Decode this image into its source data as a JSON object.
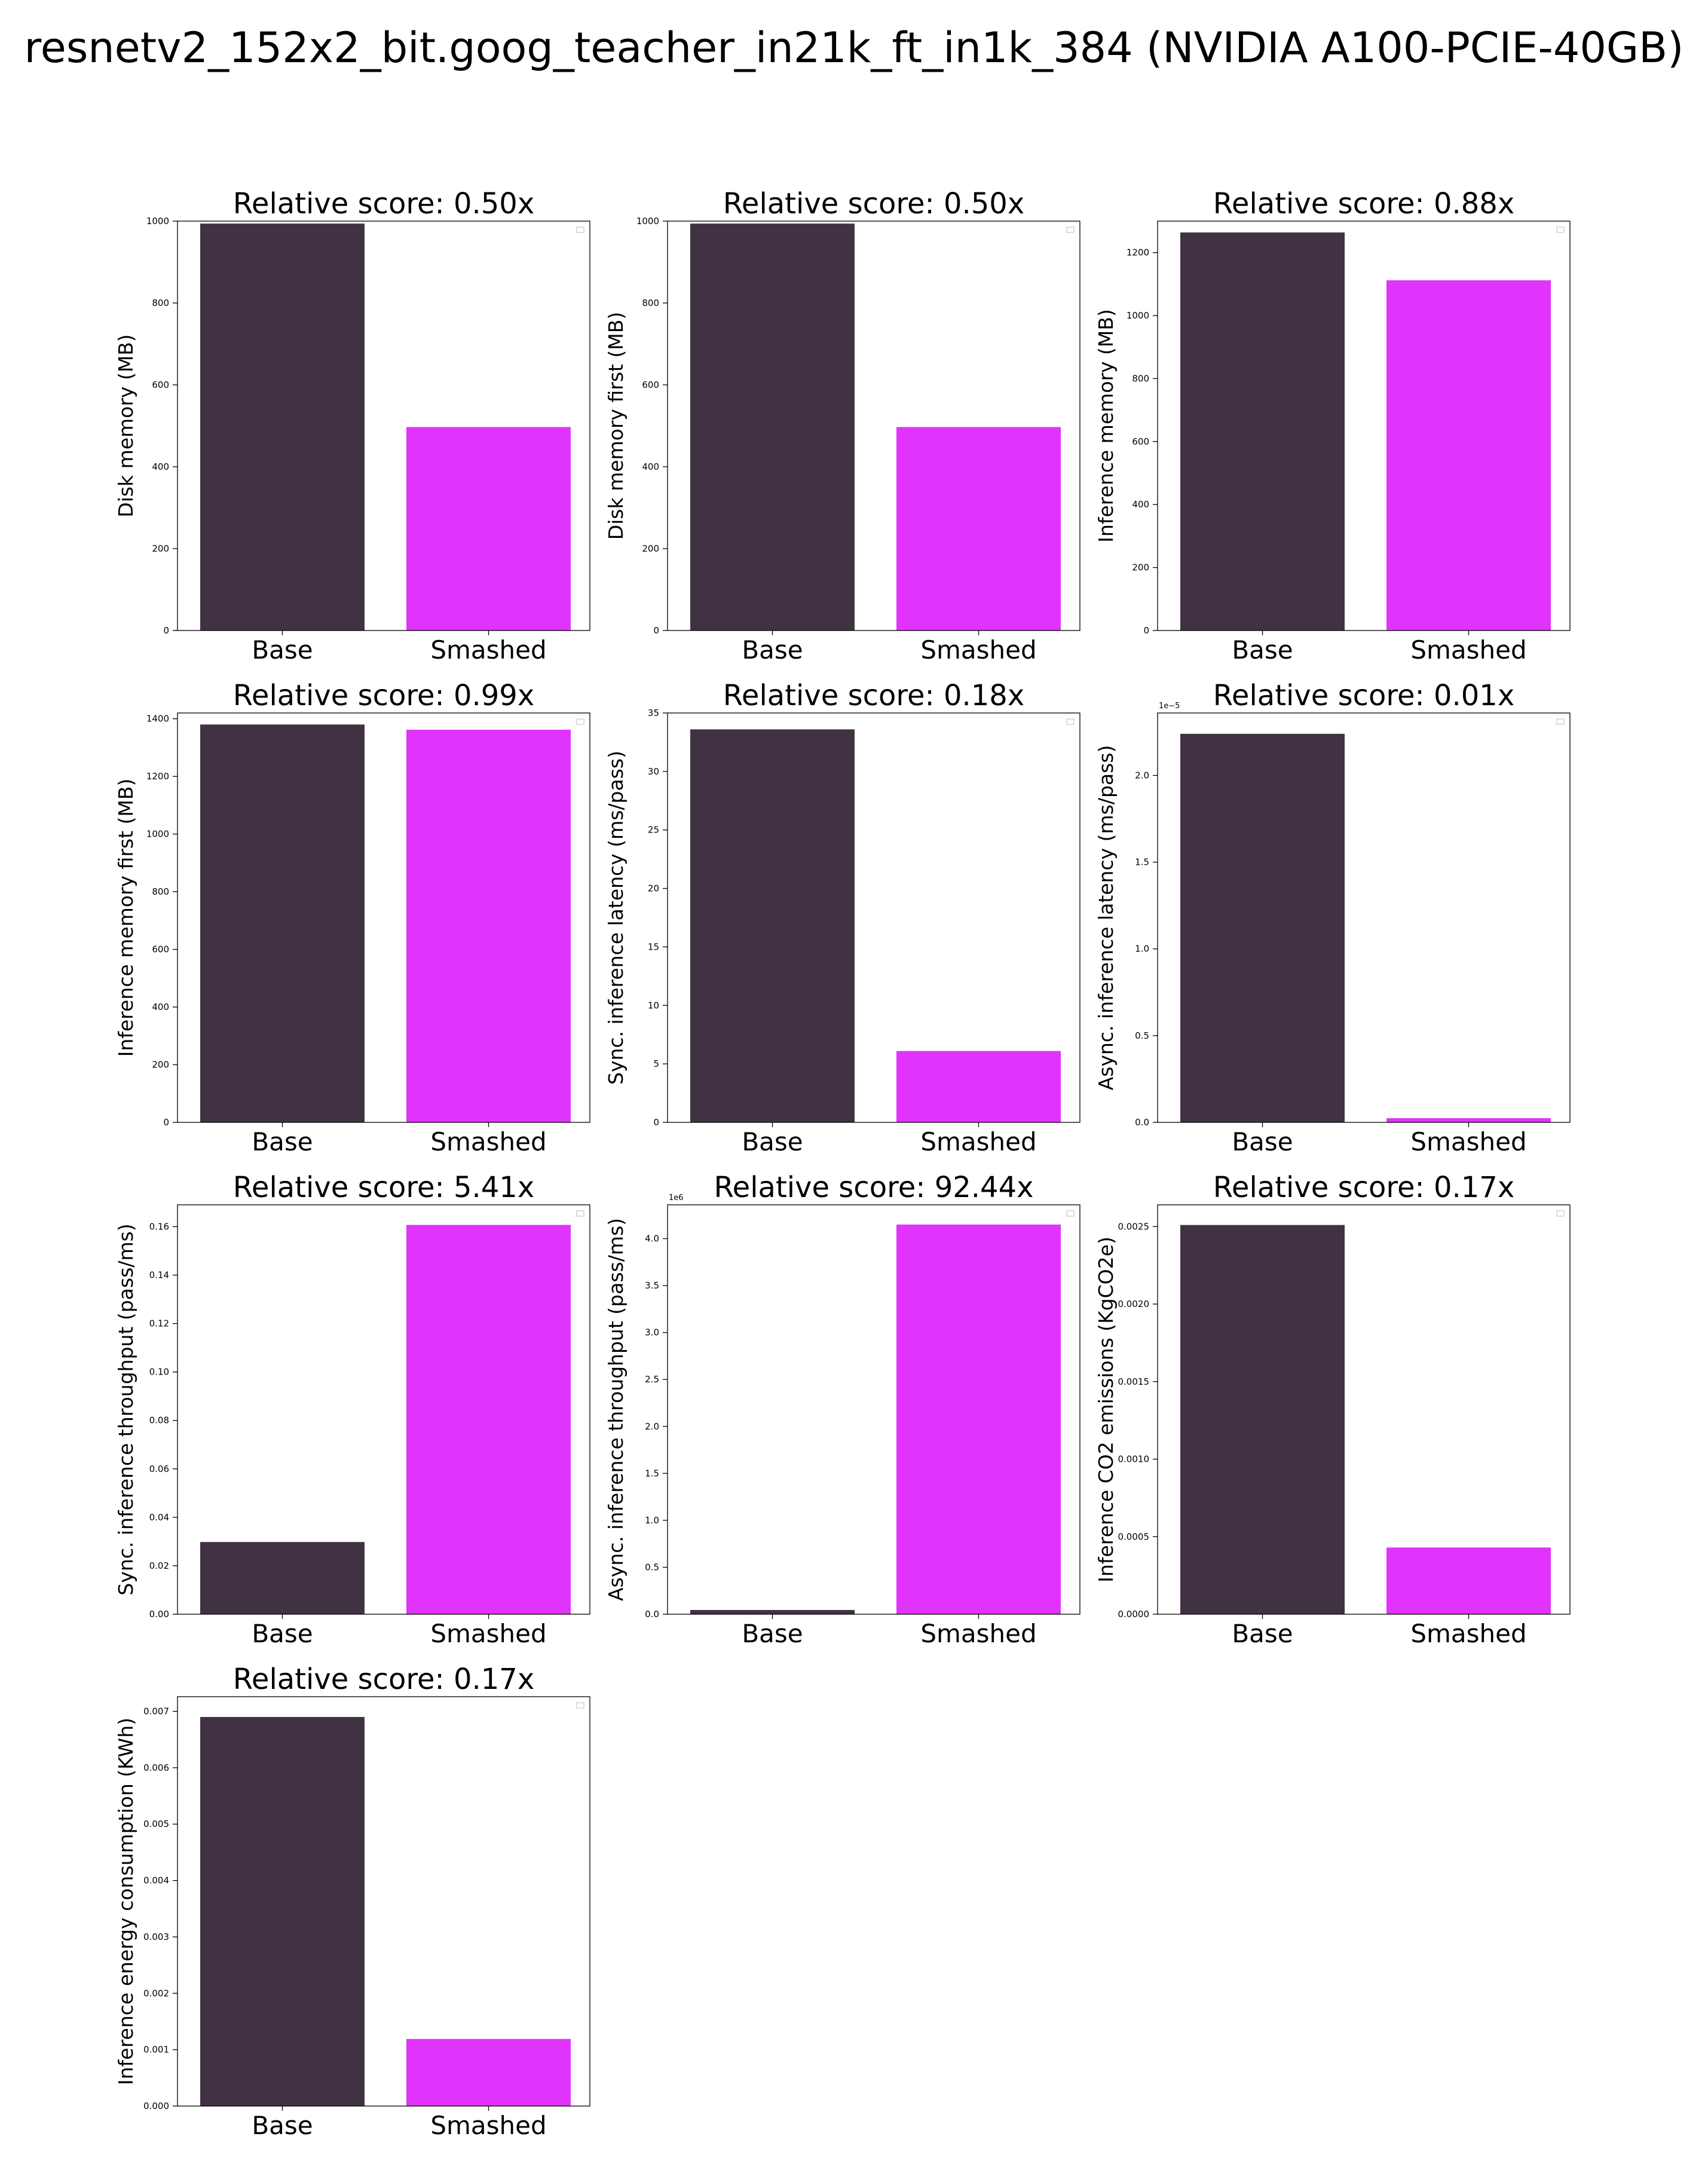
{
  "title": "resnetv2_152x2_bit.goog_teacher_in21k_ft_in1k_384 (NVIDIA A100-PCIE-40GB)",
  "colors": {
    "base": "#413243",
    "smashed": "#e033fb"
  },
  "chart_data": [
    {
      "type": "bar",
      "title": "Relative score: 0.50x",
      "ylabel": "Disk memory (MB)",
      "categories": [
        "Base",
        "Smashed"
      ],
      "values": [
        994,
        497
      ],
      "ylim": [
        0,
        1000
      ],
      "yticks": [
        0,
        200,
        400,
        600,
        800,
        1000
      ],
      "yticklabels": [
        "0",
        "200",
        "400",
        "600",
        "800",
        "1000"
      ],
      "offset_text": ""
    },
    {
      "type": "bar",
      "title": "Relative score: 0.50x",
      "ylabel": "Disk memory first (MB)",
      "categories": [
        "Base",
        "Smashed"
      ],
      "values": [
        994,
        497
      ],
      "ylim": [
        0,
        1000
      ],
      "yticks": [
        0,
        200,
        400,
        600,
        800,
        1000
      ],
      "yticklabels": [
        "0",
        "200",
        "400",
        "600",
        "800",
        "1000"
      ],
      "offset_text": ""
    },
    {
      "type": "bar",
      "title": "Relative score: 0.88x",
      "ylabel": "Inference memory (MB)",
      "categories": [
        "Base",
        "Smashed"
      ],
      "values": [
        1264,
        1112
      ],
      "ylim": [
        0,
        1300
      ],
      "yticks": [
        0,
        200,
        400,
        600,
        800,
        1000,
        1200
      ],
      "yticklabels": [
        "0",
        "200",
        "400",
        "600",
        "800",
        "1000",
        "1200"
      ],
      "offset_text": ""
    },
    {
      "type": "bar",
      "title": "Relative score: 0.99x",
      "ylabel": "Inference memory first (MB)",
      "categories": [
        "Base",
        "Smashed"
      ],
      "values": [
        1380,
        1362
      ],
      "ylim": [
        0,
        1420
      ],
      "yticks": [
        0,
        200,
        400,
        600,
        800,
        1000,
        1200,
        1400
      ],
      "yticklabels": [
        "0",
        "200",
        "400",
        "600",
        "800",
        "1000",
        "1200",
        "1400"
      ],
      "offset_text": ""
    },
    {
      "type": "bar",
      "title": "Relative score: 0.18x",
      "ylabel": "Sync. inference latency (ms/pass)",
      "categories": [
        "Base",
        "Smashed"
      ],
      "values": [
        33.6,
        6.1
      ],
      "ylim": [
        0,
        35
      ],
      "yticks": [
        0,
        5,
        10,
        15,
        20,
        25,
        30,
        35
      ],
      "yticklabels": [
        "0",
        "5",
        "10",
        "15",
        "20",
        "25",
        "30",
        "35"
      ],
      "offset_text": ""
    },
    {
      "type": "bar",
      "title": "Relative score: 0.01x",
      "ylabel": "Async. inference latency (ms/pass)",
      "categories": [
        "Base",
        "Smashed"
      ],
      "values": [
        2.24,
        0.024
      ],
      "ylim": [
        0,
        2.36
      ],
      "yticks": [
        0,
        0.5,
        1.0,
        1.5,
        2.0
      ],
      "yticklabels": [
        "0.0",
        "0.5",
        "1.0",
        "1.5",
        "2.0"
      ],
      "offset_text": "1e−5"
    },
    {
      "type": "bar",
      "title": "Relative score: 5.41x",
      "ylabel": "Sync. inference throughput (pass/ms)",
      "categories": [
        "Base",
        "Smashed"
      ],
      "values": [
        0.0298,
        0.1607
      ],
      "ylim": [
        0,
        0.169
      ],
      "yticks": [
        0,
        0.02,
        0.04,
        0.06,
        0.08,
        0.1,
        0.12,
        0.14,
        0.16
      ],
      "yticklabels": [
        "0.00",
        "0.02",
        "0.04",
        "0.06",
        "0.08",
        "0.10",
        "0.12",
        "0.14",
        "0.16"
      ],
      "offset_text": ""
    },
    {
      "type": "bar",
      "title": "Relative score: 92.44x",
      "ylabel": "Async. inference throughput (pass/ms)",
      "categories": [
        "Base",
        "Smashed"
      ],
      "values": [
        0.045,
        4.15
      ],
      "ylim": [
        0,
        4.36
      ],
      "yticks": [
        0,
        0.5,
        1.0,
        1.5,
        2.0,
        2.5,
        3.0,
        3.5,
        4.0
      ],
      "yticklabels": [
        "0.0",
        "0.5",
        "1.0",
        "1.5",
        "2.0",
        "2.5",
        "3.0",
        "3.5",
        "4.0"
      ],
      "offset_text": "1e6"
    },
    {
      "type": "bar",
      "title": "Relative score: 0.17x",
      "ylabel": "Inference CO2 emissions (KgCO2e)",
      "categories": [
        "Base",
        "Smashed"
      ],
      "values": [
        0.00251,
        0.00043
      ],
      "ylim": [
        0,
        0.00264
      ],
      "yticks": [
        0,
        0.0005,
        0.001,
        0.0015,
        0.002,
        0.0025
      ],
      "yticklabels": [
        "0.0000",
        "0.0005",
        "0.0010",
        "0.0015",
        "0.0020",
        "0.0025"
      ],
      "offset_text": ""
    },
    {
      "type": "bar",
      "title": "Relative score: 0.17x",
      "ylabel": "Inference energy consumption (KWh)",
      "categories": [
        "Base",
        "Smashed"
      ],
      "values": [
        0.0069,
        0.00119
      ],
      "ylim": [
        0,
        0.00726
      ],
      "yticks": [
        0,
        0.001,
        0.002,
        0.003,
        0.004,
        0.005,
        0.006,
        0.007
      ],
      "yticklabels": [
        "0.000",
        "0.001",
        "0.002",
        "0.003",
        "0.004",
        "0.005",
        "0.006",
        "0.007"
      ],
      "offset_text": ""
    }
  ]
}
